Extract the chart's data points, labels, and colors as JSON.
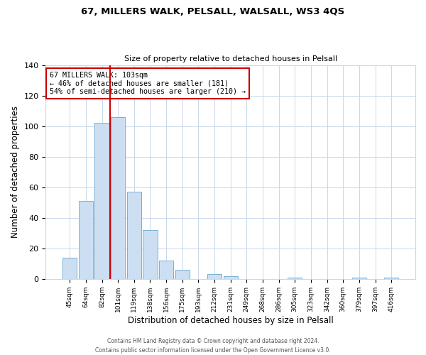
{
  "title": "67, MILLERS WALK, PELSALL, WALSALL, WS3 4QS",
  "subtitle": "Size of property relative to detached houses in Pelsall",
  "xlabel": "Distribution of detached houses by size in Pelsall",
  "ylabel": "Number of detached properties",
  "bar_labels": [
    "45sqm",
    "64sqm",
    "82sqm",
    "101sqm",
    "119sqm",
    "138sqm",
    "156sqm",
    "175sqm",
    "193sqm",
    "212sqm",
    "231sqm",
    "249sqm",
    "268sqm",
    "286sqm",
    "305sqm",
    "323sqm",
    "342sqm",
    "360sqm",
    "379sqm",
    "397sqm",
    "416sqm"
  ],
  "bar_values": [
    14,
    51,
    102,
    106,
    57,
    32,
    12,
    6,
    0,
    3,
    2,
    0,
    0,
    0,
    1,
    0,
    0,
    0,
    1,
    0,
    1
  ],
  "bar_color": "#ccdff2",
  "bar_edgecolor": "#7bafd4",
  "ylim": [
    0,
    140
  ],
  "yticks": [
    0,
    20,
    40,
    60,
    80,
    100,
    120,
    140
  ],
  "vline_color": "#cc0000",
  "annotation_line1": "67 MILLERS WALK: 103sqm",
  "annotation_line2": "← 46% of detached houses are smaller (181)",
  "annotation_line3": "54% of semi-detached houses are larger (210) →",
  "annotation_box_edgecolor": "#cc0000",
  "footer_line1": "Contains HM Land Registry data © Crown copyright and database right 2024.",
  "footer_line2": "Contains public sector information licensed under the Open Government Licence v3.0.",
  "background_color": "#ffffff",
  "grid_color": "#c8d8ea"
}
